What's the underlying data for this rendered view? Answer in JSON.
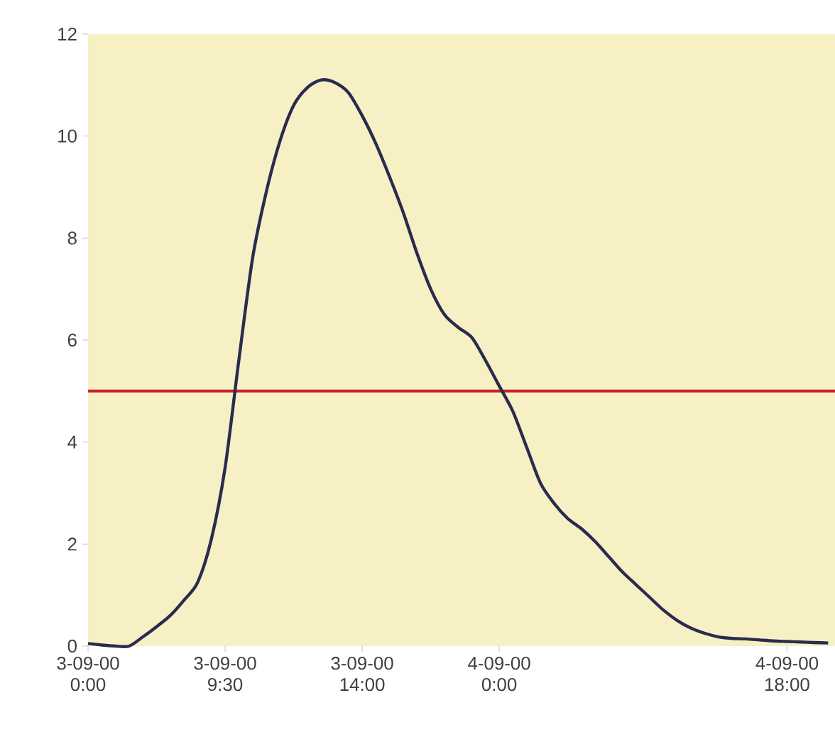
{
  "chart_data": {
    "type": "line",
    "categories": [
      "3-09-00 0:00",
      null,
      null,
      null,
      null,
      null,
      null,
      null,
      null,
      null,
      "3-09-00 9:30",
      null,
      null,
      null,
      null,
      null,
      null,
      null,
      null,
      null,
      "3-09-00 14:00",
      null,
      null,
      null,
      null,
      null,
      null,
      null,
      null,
      null,
      "4-09-00 0:00",
      null,
      null,
      null,
      null,
      null,
      null,
      null,
      null,
      null,
      null,
      null,
      null,
      null,
      null,
      null,
      null,
      null,
      null,
      null,
      null,
      "4-09-00 18:00",
      null,
      null,
      null
    ],
    "values": [
      0.05,
      0.02,
      0,
      0,
      0.18,
      0.38,
      0.6,
      0.9,
      1.25,
      2.1,
      3.5,
      5.6,
      7.6,
      8.9,
      9.9,
      10.6,
      10.95,
      11.1,
      11.05,
      10.85,
      10.4,
      9.85,
      9.2,
      8.5,
      7.7,
      7.0,
      6.5,
      6.25,
      6.05,
      5.6,
      5.1,
      4.6,
      3.9,
      3.2,
      2.8,
      2.5,
      2.3,
      2.05,
      1.75,
      1.45,
      1.2,
      0.95,
      0.7,
      0.5,
      0.35,
      0.25,
      0.18,
      0.15,
      0.14,
      0.12,
      0.1,
      0.09,
      0.08,
      0.07,
      0.06
    ],
    "color": "#2b2b4f",
    "marker": "none",
    "line_style": "solid",
    "ylim": [
      0,
      12
    ],
    "yticks": [
      0,
      2,
      4,
      6,
      8,
      10,
      12
    ],
    "ref_lines": [
      {
        "axis": "y",
        "value": 5,
        "color": "#c8202a"
      }
    ]
  }
}
